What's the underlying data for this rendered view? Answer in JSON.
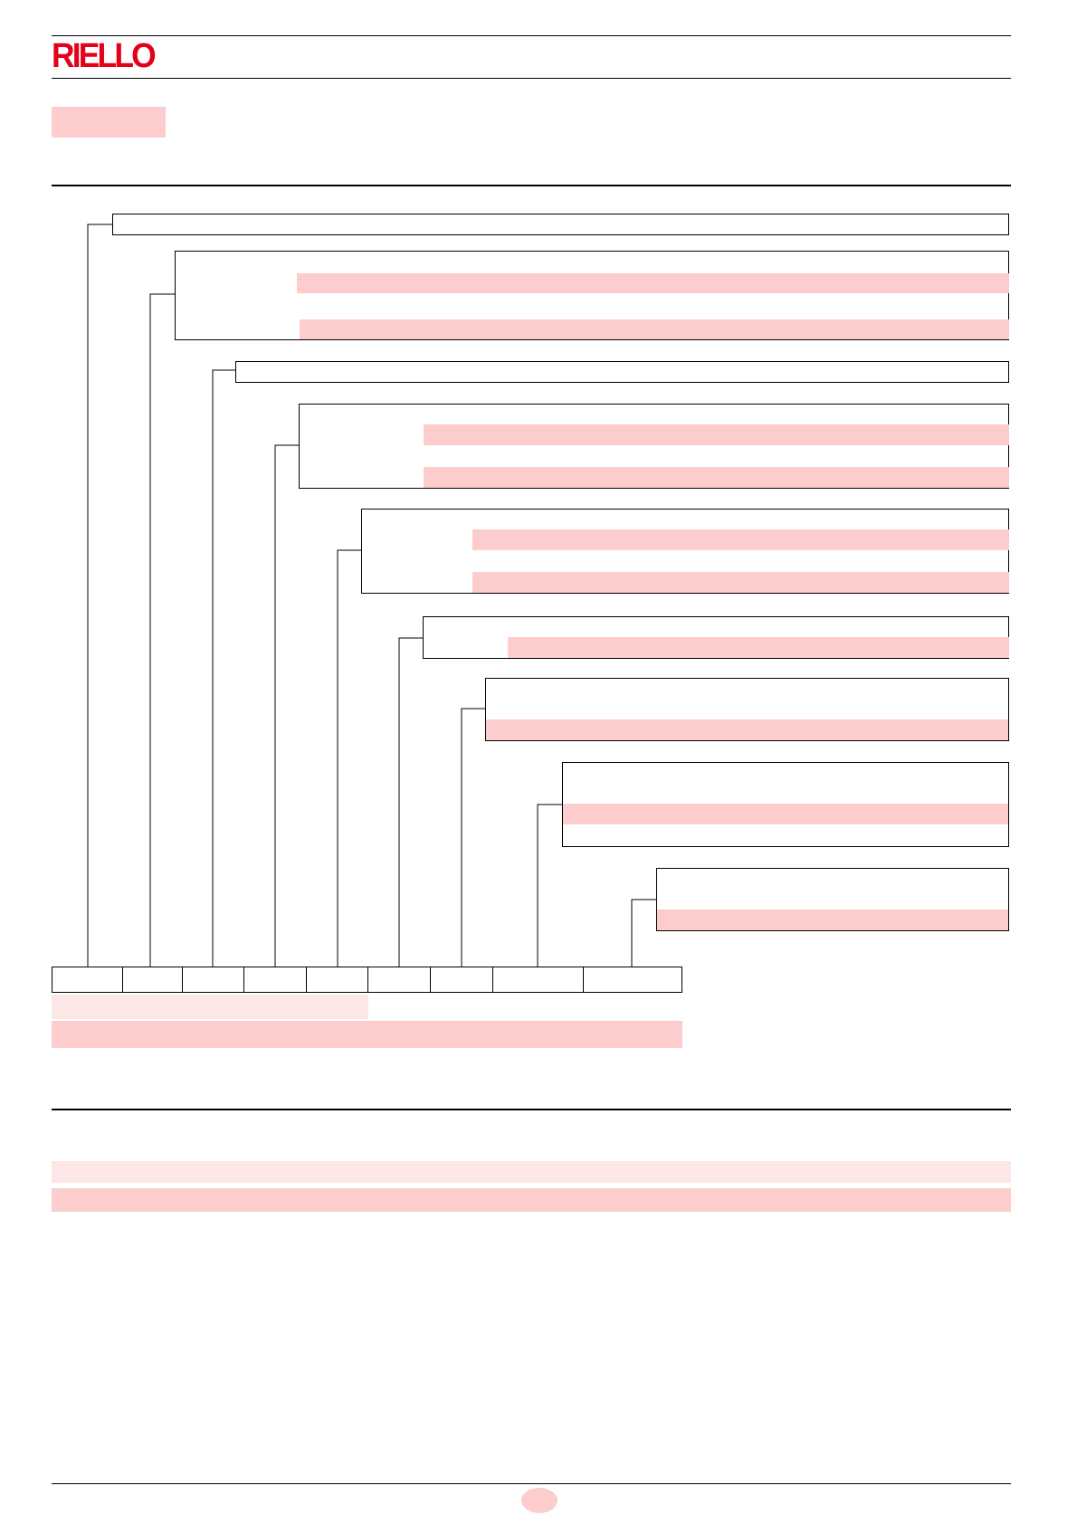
{
  "header": {
    "logo_text": "RIELLO"
  },
  "brand": {
    "logo_color": "#e2001a",
    "highlight_color": "#fdcccc",
    "highlight_light_color": "#fde6e6"
  },
  "designation": {
    "levels": 10,
    "code_cells": 9
  },
  "footer": {
    "page_number": ""
  }
}
